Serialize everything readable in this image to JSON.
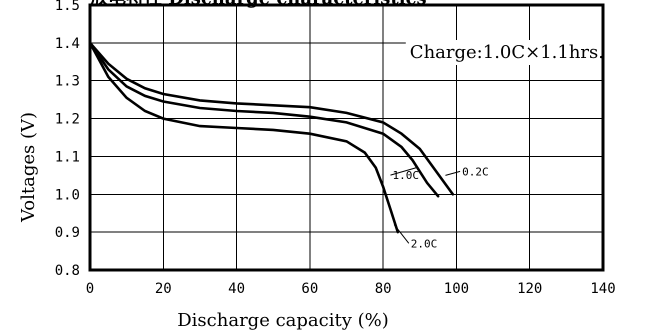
{
  "chart_data": {
    "type": "line",
    "title": "放电特性 Discharge characteristics",
    "annotation": "Charge:1.0C×1.1hrs.",
    "xlabel": "Discharge capacity (%)",
    "ylabel": "Voltages (V)",
    "xlim": [
      0,
      140
    ],
    "ylim": [
      0.8,
      1.5
    ],
    "x_ticks": [
      "0",
      "20",
      "40",
      "60",
      "80",
      "100",
      "120",
      "140"
    ],
    "y_ticks": [
      "0.8",
      "0.9",
      "1.0",
      "1.1",
      "1.2",
      "1.3",
      "1.4",
      "1.5"
    ],
    "grid": true,
    "series": [
      {
        "name": "0.2C",
        "points": [
          [
            0,
            1.4
          ],
          [
            5,
            1.345
          ],
          [
            10,
            1.305
          ],
          [
            15,
            1.28
          ],
          [
            20,
            1.265
          ],
          [
            30,
            1.248
          ],
          [
            40,
            1.24
          ],
          [
            50,
            1.235
          ],
          [
            60,
            1.23
          ],
          [
            70,
            1.215
          ],
          [
            80,
            1.19
          ],
          [
            85,
            1.16
          ],
          [
            90,
            1.12
          ],
          [
            93,
            1.08
          ],
          [
            96,
            1.04
          ],
          [
            99,
            1.0
          ]
        ]
      },
      {
        "name": "1.0C",
        "points": [
          [
            0,
            1.4
          ],
          [
            5,
            1.33
          ],
          [
            10,
            1.285
          ],
          [
            15,
            1.26
          ],
          [
            20,
            1.245
          ],
          [
            30,
            1.228
          ],
          [
            40,
            1.22
          ],
          [
            50,
            1.215
          ],
          [
            60,
            1.205
          ],
          [
            70,
            1.19
          ],
          [
            80,
            1.16
          ],
          [
            85,
            1.125
          ],
          [
            88,
            1.09
          ],
          [
            90,
            1.06
          ],
          [
            92,
            1.03
          ],
          [
            95,
            0.995
          ]
        ]
      },
      {
        "name": "2.0C",
        "points": [
          [
            0,
            1.4
          ],
          [
            5,
            1.31
          ],
          [
            10,
            1.255
          ],
          [
            15,
            1.22
          ],
          [
            20,
            1.2
          ],
          [
            30,
            1.18
          ],
          [
            40,
            1.175
          ],
          [
            50,
            1.17
          ],
          [
            60,
            1.16
          ],
          [
            70,
            1.14
          ],
          [
            75,
            1.11
          ],
          [
            78,
            1.07
          ],
          [
            80,
            1.02
          ],
          [
            82,
            0.96
          ],
          [
            84,
            0.9
          ]
        ]
      }
    ],
    "series_labels": [
      {
        "text": "0.2C",
        "at": [
          101,
          1.05
        ],
        "leader_to": [
          97,
          1.05
        ]
      },
      {
        "text": "1.0C",
        "at": [
          82,
          1.04
        ],
        "leader_to": [
          89,
          1.07
        ]
      },
      {
        "text": "2.0C",
        "at": [
          87,
          0.86
        ],
        "leader_to": [
          83,
          0.92
        ]
      }
    ]
  }
}
